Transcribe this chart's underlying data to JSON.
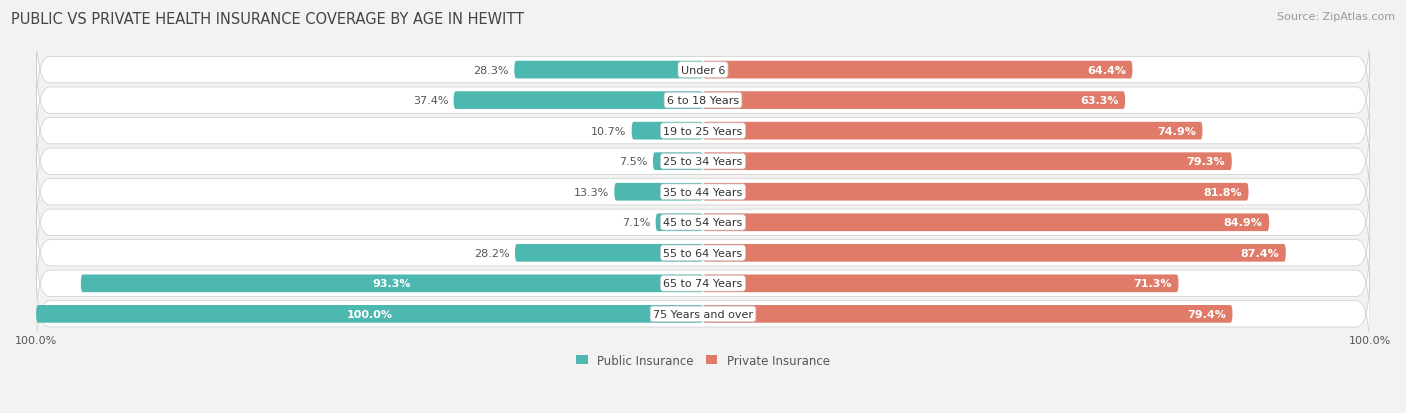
{
  "title": "PUBLIC VS PRIVATE HEALTH INSURANCE COVERAGE BY AGE IN HEWITT",
  "source": "Source: ZipAtlas.com",
  "categories": [
    "Under 6",
    "6 to 18 Years",
    "19 to 25 Years",
    "25 to 34 Years",
    "35 to 44 Years",
    "45 to 54 Years",
    "55 to 64 Years",
    "65 to 74 Years",
    "75 Years and over"
  ],
  "public_values": [
    28.3,
    37.4,
    10.7,
    7.5,
    13.3,
    7.1,
    28.2,
    93.3,
    100.0
  ],
  "private_values": [
    64.4,
    63.3,
    74.9,
    79.3,
    81.8,
    84.9,
    87.4,
    71.3,
    79.4
  ],
  "public_color": "#4db8b0",
  "private_color": "#e07b6a",
  "public_color_light": "#a8dbd8",
  "private_color_light": "#f0b0a8",
  "bg_color": "#f2f2f2",
  "row_bg_color": "#ffffff",
  "row_border_color": "#dddddd",
  "title_fontsize": 10.5,
  "source_fontsize": 8,
  "label_fontsize": 8,
  "category_fontsize": 8,
  "legend_fontsize": 8.5,
  "xlim": 100.0
}
